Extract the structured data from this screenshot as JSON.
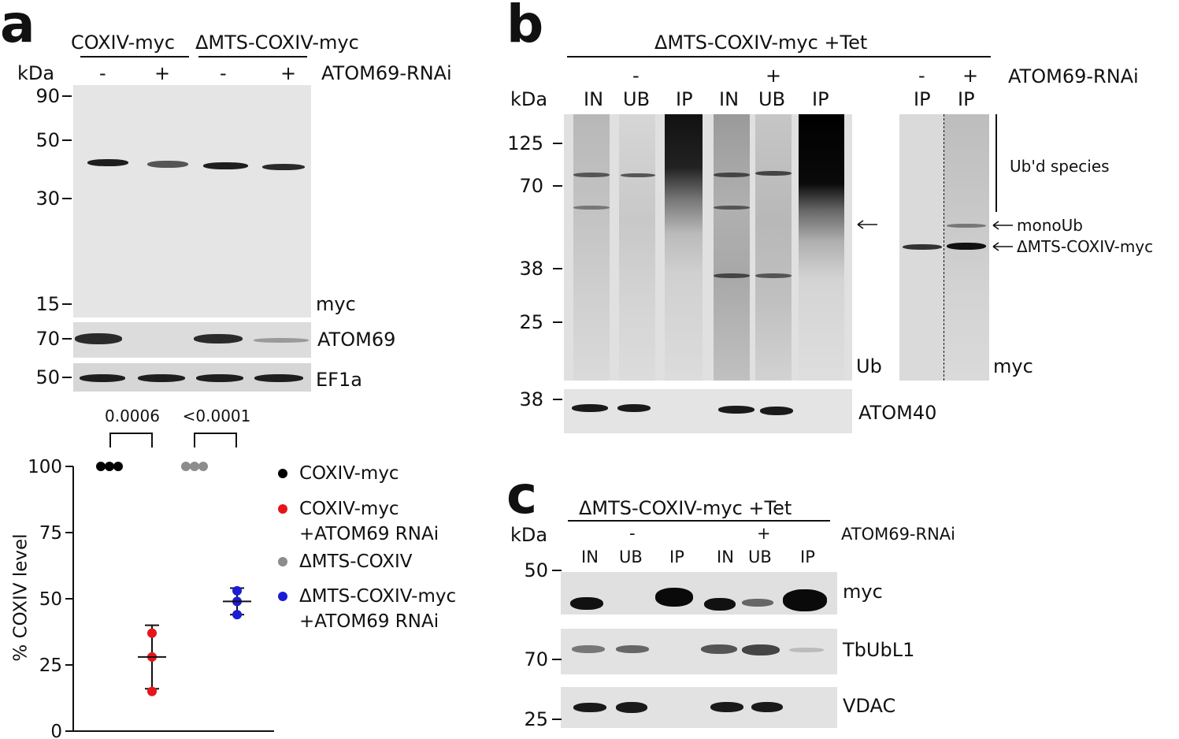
{
  "panel_a": {
    "label": "a",
    "constructs": [
      "COXIV-myc",
      "ΔMTS-COXIV-myc"
    ],
    "kda_label": "kDa",
    "rnai_signs": [
      "-",
      "+",
      "-",
      "+"
    ],
    "rnai_label": "ATOM69-RNAi",
    "markers": [
      "90",
      "50",
      "30",
      "15"
    ],
    "blot_labels": {
      "myc": "myc",
      "atom69": "ATOM69",
      "ef1a": "EF1a"
    },
    "atom69_marker": "70",
    "ef1a_marker": "50",
    "pvalues": [
      "0.0006",
      "<0.0001"
    ]
  },
  "chart_data": {
    "type": "scatter",
    "title": "",
    "xlabel": "",
    "ylabel": "% COXIV level",
    "ylim": [
      0,
      100
    ],
    "yticks": [
      "0",
      "25",
      "50",
      "75",
      "100"
    ],
    "categories": [
      "COXIV-myc",
      "COXIV-myc\n+ATOM69 RNAi",
      "ΔMTS-COXIV",
      "ΔMTS-COXIV-myc\n+ATOM69 RNAi"
    ],
    "series": [
      {
        "name": "COXIV-myc",
        "color": "#000000",
        "values": [
          100,
          100,
          100
        ],
        "mean": 100,
        "sd": 0
      },
      {
        "name": "COXIV-myc\n+ATOM69 RNAi",
        "color": "#e8141b",
        "values": [
          15,
          28,
          37
        ],
        "mean": 28,
        "sd": 12
      },
      {
        "name": "ΔMTS-COXIV",
        "color": "#8c8c8c",
        "values": [
          100,
          100,
          100
        ],
        "mean": 100,
        "sd": 0
      },
      {
        "name": "ΔMTS-COXIV-myc\n+ATOM69 RNAi",
        "color": "#1c1cd6",
        "values": [
          44,
          49,
          53
        ],
        "mean": 49,
        "sd": 5
      }
    ],
    "legend": [
      {
        "line1": "COXIV-myc",
        "line2": "",
        "color": "#000000"
      },
      {
        "line1": "COXIV-myc",
        "line2": "+ATOM69 RNAi",
        "color": "#e8141b"
      },
      {
        "line1": "ΔMTS-COXIV",
        "line2": "",
        "color": "#8c8c8c"
      },
      {
        "line1": "ΔMTS-COXIV-myc",
        "line2": "+ATOM69 RNAi",
        "color": "#1c1cd6"
      }
    ]
  },
  "panel_b": {
    "label": "b",
    "construct": "ΔMTS-COXIV-myc +Tet",
    "kda_label": "kDa",
    "signs": [
      "-",
      "+"
    ],
    "lanes": [
      "IN",
      "UB",
      "IP",
      "IN",
      "UB",
      "IP"
    ],
    "right_signs": [
      "-",
      "+"
    ],
    "right_lanes": [
      "IP",
      "IP"
    ],
    "rnai_label": "ATOM69-RNAi",
    "markers": [
      "125",
      "70",
      "38",
      "25"
    ],
    "atom40_marker": "38",
    "blot_labels": {
      "ub": "Ub",
      "myc": "myc",
      "atom40": "ATOM40"
    },
    "annotations": {
      "ubd": "Ub'd species",
      "monoub": "monoUb",
      "coxiv": "ΔMTS-COXIV-myc"
    }
  },
  "panel_c": {
    "label": "c",
    "construct": "ΔMTS-COXIV-myc +Tet",
    "kda_label": "kDa",
    "signs": [
      "-",
      "+"
    ],
    "lanes": [
      "IN",
      "UB",
      "IP",
      "IN",
      "UB",
      "IP"
    ],
    "rnai_label": "ATOM69-RNAi",
    "markers": [
      "50",
      "70",
      "25"
    ],
    "blot_labels": {
      "myc": "myc",
      "tbubl1": "TbUbL1",
      "vdac": "VDAC"
    }
  }
}
